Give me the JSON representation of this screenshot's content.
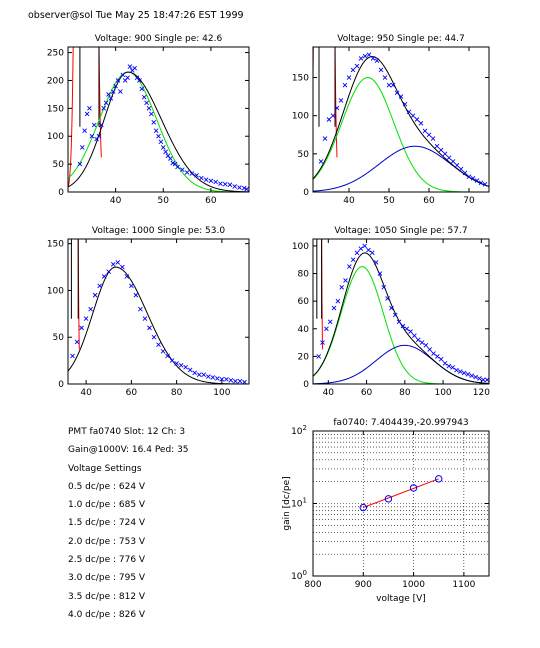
{
  "header": {
    "text": "observer@sol  Tue May 25 18:47:26 EST 1999"
  },
  "info": {
    "lines": [
      "PMT fa0740 Slot: 12 Ch: 3",
      "Gain@1000V: 16.4 Ped: 35",
      "Voltage Settings",
      "0.5 dc/pe : 624 V",
      "1.0 dc/pe : 685 V",
      "1.5 dc/pe : 724 V",
      "2.0 dc/pe : 753 V",
      "2.5 dc/pe : 776 V",
      "3.0 dc/pe : 795 V",
      "3.5 dc/pe : 812 V",
      "4.0 dc/pe : 826 V"
    ]
  },
  "colors": {
    "data": "#0000ff",
    "fit": "#000000",
    "single_pe": "#00e000",
    "double_pe": "#0000c8",
    "pedestal": "#ff0000",
    "gain_line": "#ff0000",
    "gain_points": "#0000ff"
  },
  "chart_data": [
    {
      "type": "scatter",
      "title": "Voltage: 900 Single pe: 42.6",
      "xlim": [
        30,
        68
      ],
      "ylim": [
        0,
        260
      ],
      "xticks": [
        40,
        50,
        60
      ],
      "yticks": [
        0,
        50,
        100,
        150,
        200,
        250
      ],
      "pedestal": {
        "center": 35,
        "lines_at": [
          32.5,
          36.5
        ]
      },
      "fit": {
        "amp": 215,
        "mean": 42.6,
        "sigma_left": 5.0,
        "sigma_right": 7.0
      },
      "components": [
        {
          "name": "",
          "mean": 42.6,
          "amp": 215,
          "sigma": 6
        }
      ],
      "points": [
        [
          32.5,
          50
        ],
        [
          33,
          80
        ],
        [
          33.5,
          110
        ],
        [
          34,
          140
        ],
        [
          34.5,
          150
        ],
        [
          35,
          100
        ],
        [
          35.5,
          120
        ],
        [
          36,
          95
        ],
        [
          36.5,
          100
        ],
        [
          37,
          120
        ],
        [
          37.5,
          150
        ],
        [
          38,
          160
        ],
        [
          38.5,
          175
        ],
        [
          39,
          168
        ],
        [
          39.5,
          180
        ],
        [
          40,
          190
        ],
        [
          40.5,
          200
        ],
        [
          41,
          180
        ],
        [
          41.5,
          210
        ],
        [
          42,
          200
        ],
        [
          42.5,
          205
        ],
        [
          43,
          225
        ],
        [
          43.5,
          218
        ],
        [
          44,
          222
        ],
        [
          44.5,
          205
        ],
        [
          45,
          200
        ],
        [
          45.5,
          185
        ],
        [
          46,
          170
        ],
        [
          46.5,
          160
        ],
        [
          47,
          150
        ],
        [
          47.5,
          140
        ],
        [
          48,
          125
        ],
        [
          48.5,
          110
        ],
        [
          49,
          100
        ],
        [
          49.5,
          90
        ],
        [
          50,
          80
        ],
        [
          50.5,
          72
        ],
        [
          51,
          65
        ],
        [
          51.5,
          60
        ],
        [
          52,
          52
        ],
        [
          52.5,
          50
        ],
        [
          53,
          45
        ],
        [
          54,
          40
        ],
        [
          55,
          35
        ],
        [
          56,
          33
        ],
        [
          57,
          30
        ],
        [
          58,
          25
        ],
        [
          59,
          22
        ],
        [
          60,
          20
        ],
        [
          61,
          18
        ],
        [
          62,
          15
        ],
        [
          63,
          14
        ],
        [
          64,
          13
        ],
        [
          65,
          10
        ],
        [
          66,
          8
        ],
        [
          67,
          7
        ],
        [
          67.5,
          5
        ]
      ]
    },
    {
      "type": "scatter",
      "title": "Voltage: 950 Single pe: 44.7",
      "xlim": [
        31,
        75
      ],
      "ylim": [
        0,
        190
      ],
      "xticks": [
        40,
        50,
        60,
        70
      ],
      "yticks": [
        0,
        50,
        100,
        150
      ],
      "pedestal": {
        "center": 35,
        "lines_at": [
          32.5,
          36.5
        ]
      },
      "fit": {
        "amp": 0,
        "mean": 0,
        "sigma_left": 0,
        "sigma_right": 0
      },
      "components": [
        {
          "name": "",
          "mean": 44.7,
          "amp": 150,
          "sigma": 6.5
        },
        {
          "name": "",
          "mean": 56.5,
          "amp": 60,
          "sigma": 9
        }
      ],
      "points": [
        [
          33,
          40
        ],
        [
          34,
          70
        ],
        [
          35,
          95
        ],
        [
          36,
          100
        ],
        [
          37,
          110
        ],
        [
          38,
          120
        ],
        [
          39,
          140
        ],
        [
          40,
          150
        ],
        [
          41,
          160
        ],
        [
          42,
          165
        ],
        [
          43,
          175
        ],
        [
          44,
          178
        ],
        [
          45,
          180
        ],
        [
          46,
          175
        ],
        [
          47,
          172
        ],
        [
          48,
          160
        ],
        [
          49,
          150
        ],
        [
          50,
          140
        ],
        [
          51,
          140
        ],
        [
          52,
          130
        ],
        [
          53,
          125
        ],
        [
          54,
          115
        ],
        [
          55,
          105
        ],
        [
          56,
          100
        ],
        [
          57,
          95
        ],
        [
          58,
          90
        ],
        [
          59,
          80
        ],
        [
          60,
          75
        ],
        [
          61,
          70
        ],
        [
          62,
          60
        ],
        [
          63,
          55
        ],
        [
          64,
          50
        ],
        [
          65,
          45
        ],
        [
          66,
          40
        ],
        [
          67,
          35
        ],
        [
          68,
          30
        ],
        [
          69,
          25
        ],
        [
          70,
          20
        ],
        [
          71,
          18
        ],
        [
          72,
          15
        ],
        [
          73,
          12
        ],
        [
          74,
          10
        ]
      ]
    },
    {
      "type": "scatter",
      "title": "Voltage: 1000 Single pe: 53.0",
      "xlim": [
        32,
        112
      ],
      "ylim": [
        0,
        155
      ],
      "xticks": [
        40,
        60,
        80,
        100
      ],
      "yticks": [
        0,
        50,
        100,
        150
      ],
      "pedestal": {
        "center": 35,
        "lines_at": [
          33.5,
          36.5
        ]
      },
      "fit": {
        "amp": 125,
        "mean": 53.0,
        "sigma_left": 10,
        "sigma_right": 14
      },
      "components": [
        {
          "name": "",
          "mean": 53.0,
          "amp": 125,
          "sigma": 12
        }
      ],
      "points": [
        [
          34,
          30
        ],
        [
          36,
          45
        ],
        [
          38,
          60
        ],
        [
          40,
          70
        ],
        [
          42,
          80
        ],
        [
          44,
          95
        ],
        [
          46,
          105
        ],
        [
          48,
          115
        ],
        [
          50,
          120
        ],
        [
          52,
          128
        ],
        [
          54,
          130
        ],
        [
          56,
          125
        ],
        [
          58,
          115
        ],
        [
          60,
          105
        ],
        [
          62,
          95
        ],
        [
          64,
          80
        ],
        [
          66,
          70
        ],
        [
          68,
          60
        ],
        [
          70,
          50
        ],
        [
          72,
          42
        ],
        [
          74,
          35
        ],
        [
          76,
          30
        ],
        [
          78,
          25
        ],
        [
          80,
          22
        ],
        [
          82,
          20
        ],
        [
          84,
          18
        ],
        [
          86,
          15
        ],
        [
          88,
          12
        ],
        [
          90,
          10
        ],
        [
          92,
          10
        ],
        [
          94,
          8
        ],
        [
          96,
          7
        ],
        [
          98,
          6
        ],
        [
          100,
          5
        ],
        [
          102,
          5
        ],
        [
          104,
          4
        ],
        [
          106,
          3
        ],
        [
          108,
          3
        ],
        [
          110,
          2
        ]
      ]
    },
    {
      "type": "scatter",
      "title": "Voltage: 1050 Single pe: 57.7",
      "xlim": [
        32,
        124
      ],
      "ylim": [
        0,
        105
      ],
      "xticks": [
        40,
        60,
        80,
        100,
        120
      ],
      "yticks": [
        0,
        20,
        40,
        60,
        80,
        100
      ],
      "pedestal": {
        "center": 35,
        "lines_at": [
          34,
          36.5
        ]
      },
      "fit": {
        "amp": 0,
        "mean": 0,
        "sigma_left": 0,
        "sigma_right": 0
      },
      "components": [
        {
          "name": "",
          "mean": 57.7,
          "amp": 85,
          "sigma": 11
        },
        {
          "name": "",
          "mean": 80,
          "amp": 28,
          "sigma": 15
        }
      ],
      "points": [
        [
          35,
          20
        ],
        [
          37,
          30
        ],
        [
          39,
          40
        ],
        [
          41,
          45
        ],
        [
          43,
          55
        ],
        [
          45,
          60
        ],
        [
          47,
          70
        ],
        [
          49,
          75
        ],
        [
          51,
          85
        ],
        [
          53,
          90
        ],
        [
          55,
          95
        ],
        [
          57,
          98
        ],
        [
          59,
          100
        ],
        [
          61,
          97
        ],
        [
          63,
          95
        ],
        [
          65,
          88
        ],
        [
          67,
          80
        ],
        [
          69,
          70
        ],
        [
          71,
          62
        ],
        [
          73,
          55
        ],
        [
          75,
          50
        ],
        [
          77,
          45
        ],
        [
          79,
          42
        ],
        [
          81,
          40
        ],
        [
          83,
          38
        ],
        [
          85,
          35
        ],
        [
          87,
          32
        ],
        [
          89,
          30
        ],
        [
          91,
          28
        ],
        [
          93,
          25
        ],
        [
          95,
          22
        ],
        [
          97,
          20
        ],
        [
          99,
          18
        ],
        [
          101,
          15
        ],
        [
          103,
          13
        ],
        [
          105,
          12
        ],
        [
          107,
          10
        ],
        [
          109,
          9
        ],
        [
          111,
          8
        ],
        [
          113,
          7
        ],
        [
          115,
          6
        ],
        [
          117,
          5
        ],
        [
          119,
          4
        ],
        [
          121,
          3
        ],
        [
          123,
          3
        ]
      ]
    },
    {
      "type": "line",
      "title": "fa0740: 7.404439,-20.997943",
      "xlabel": "voltage [V]",
      "ylabel": "gain [dc/pe]",
      "xlim": [
        800,
        1150
      ],
      "ylim": [
        1,
        100
      ],
      "yscale": "log",
      "xticks": [
        800,
        900,
        1000,
        1100
      ],
      "yticks": [
        1,
        10,
        100
      ],
      "ytick_labels": [
        "10^0",
        "10^1",
        "10^2"
      ],
      "points": [
        [
          900,
          8.8
        ],
        [
          950,
          11.6
        ],
        [
          1000,
          16.4
        ],
        [
          1050,
          21.9
        ]
      ],
      "line": [
        [
          900,
          8.8
        ],
        [
          1050,
          21.9
        ]
      ],
      "grid": true
    }
  ]
}
